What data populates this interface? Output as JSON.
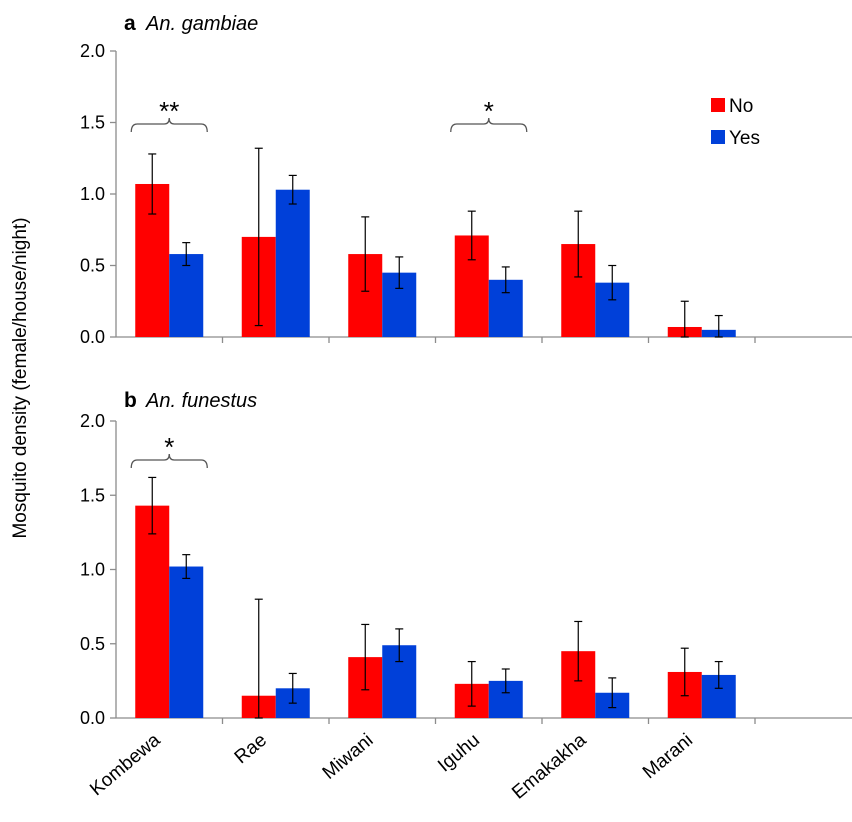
{
  "figure": {
    "ylabel": "Mosquito density (female/house/night)"
  },
  "chart_data": [
    {
      "type": "bar",
      "panel": "a",
      "title": "An. gambiae",
      "categories": [
        "Kombewa",
        "Rae",
        "Miwani",
        "Iguhu",
        "Emakakha",
        "Marani"
      ],
      "series": [
        {
          "name": "No",
          "color": "#ff0000",
          "values": [
            1.07,
            0.7,
            0.58,
            0.71,
            0.65,
            0.07
          ],
          "err": [
            0.21,
            0.62,
            0.26,
            0.17,
            0.23,
            0.18
          ]
        },
        {
          "name": "Yes",
          "color": "#0040d9",
          "values": [
            0.58,
            1.03,
            0.45,
            0.4,
            0.38,
            0.05
          ],
          "err": [
            0.08,
            0.1,
            0.11,
            0.09,
            0.12,
            0.1
          ]
        }
      ],
      "ylim": [
        0,
        2.0
      ],
      "yticks": [
        "0.0",
        "0.5",
        "1.0",
        "1.5",
        "2.0"
      ],
      "legend": {
        "position": "top-right",
        "entries": [
          "No",
          "Yes"
        ]
      },
      "annotations": [
        {
          "category": "Kombewa",
          "label": "**"
        },
        {
          "category": "Iguhu",
          "label": "*"
        }
      ],
      "grid": false
    },
    {
      "type": "bar",
      "panel": "b",
      "title": "An. funestus",
      "categories": [
        "Kombewa",
        "Rae",
        "Miwani",
        "Iguhu",
        "Emakakha",
        "Marani"
      ],
      "series": [
        {
          "name": "No",
          "color": "#ff0000",
          "values": [
            1.43,
            0.15,
            0.41,
            0.23,
            0.45,
            0.31
          ],
          "err": [
            0.19,
            0.65,
            0.22,
            0.15,
            0.2,
            0.16
          ]
        },
        {
          "name": "Yes",
          "color": "#0040d9",
          "values": [
            1.02,
            0.2,
            0.49,
            0.25,
            0.17,
            0.29
          ],
          "err": [
            0.08,
            0.1,
            0.11,
            0.08,
            0.1,
            0.09
          ]
        }
      ],
      "ylim": [
        0,
        2.0
      ],
      "yticks": [
        "0.0",
        "0.5",
        "1.0",
        "1.5",
        "2.0"
      ],
      "annotations": [
        {
          "category": "Kombewa",
          "label": "*"
        }
      ],
      "grid": false
    }
  ]
}
